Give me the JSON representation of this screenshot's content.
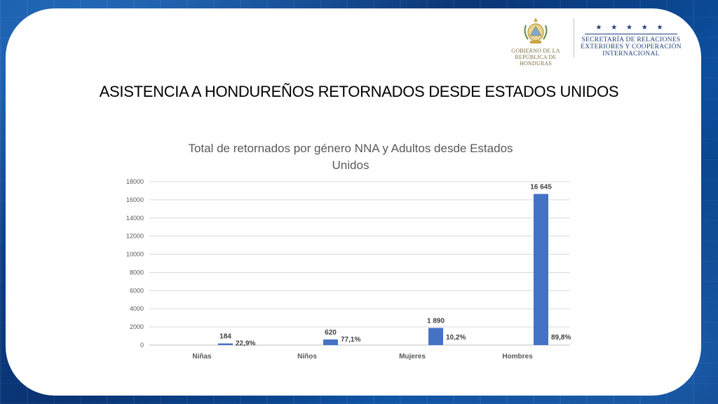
{
  "slide_title": "ASISTENCIA A HONDUREÑOS RETORNADOS DESDE ESTADOS UNIDOS",
  "logos": {
    "gobierno_line1": "GOBIERNO DE LA",
    "gobierno_line2": "REPÚBLICA DE HONDURAS",
    "secretaria_line1": "SECRETARÍA DE RELACIONES",
    "secretaria_line2": "EXTERIORES Y COOPERACIÓN",
    "secretaria_line3": "INTERNACIONAL",
    "stars": "★ ★ ★ ★ ★"
  },
  "colors": {
    "bar": "#4472C4",
    "background": "#0a3f86"
  },
  "chart_data": {
    "type": "bar",
    "title": "Total de retornados por género NNA y Adultos desde Estados Unidos",
    "categories": [
      "Niñas",
      "Niños",
      "Mujeres",
      "Hombres"
    ],
    "values": [
      184,
      620,
      1890,
      16645
    ],
    "value_labels": [
      "184",
      "620",
      "1 890",
      "16 645"
    ],
    "percent_labels": [
      "22,9%",
      "77,1%",
      "10,2%",
      "89,8%"
    ],
    "ylim": [
      0,
      18000
    ],
    "yticks": [
      0,
      2000,
      4000,
      6000,
      8000,
      10000,
      12000,
      14000,
      16000,
      18000
    ],
    "grid": true,
    "legend": "none"
  }
}
